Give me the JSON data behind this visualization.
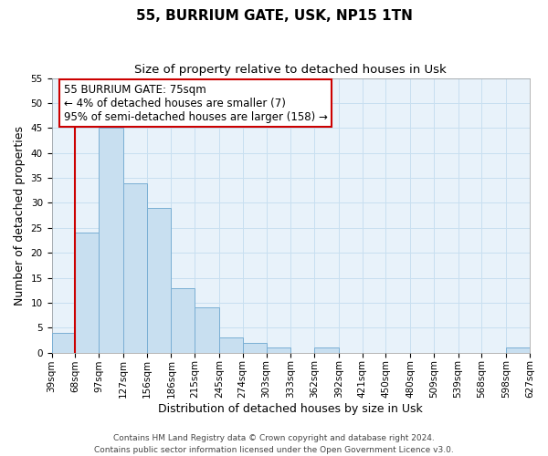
{
  "title": "55, BURRIUM GATE, USK, NP15 1TN",
  "subtitle": "Size of property relative to detached houses in Usk",
  "xlabel": "Distribution of detached houses by size in Usk",
  "ylabel": "Number of detached properties",
  "bins": [
    39,
    68,
    97,
    127,
    156,
    186,
    215,
    245,
    274,
    303,
    333,
    362,
    392,
    421,
    450,
    480,
    509,
    539,
    568,
    598,
    627
  ],
  "counts": [
    4,
    24,
    45,
    34,
    29,
    13,
    9,
    3,
    2,
    1,
    0,
    1,
    0,
    0,
    0,
    0,
    0,
    0,
    0,
    1
  ],
  "bin_labels": [
    "39sqm",
    "68sqm",
    "97sqm",
    "127sqm",
    "156sqm",
    "186sqm",
    "215sqm",
    "245sqm",
    "274sqm",
    "303sqm",
    "333sqm",
    "362sqm",
    "392sqm",
    "421sqm",
    "450sqm",
    "480sqm",
    "509sqm",
    "539sqm",
    "568sqm",
    "598sqm",
    "627sqm"
  ],
  "bar_color": "#c8dff0",
  "bar_edge_color": "#7aafd4",
  "red_line_x": 68,
  "annotation_line1": "55 BURRIUM GATE: 75sqm",
  "annotation_line2": "← 4% of detached houses are smaller (7)",
  "annotation_line3": "95% of semi-detached houses are larger (158) →",
  "annotation_box_color": "#ffffff",
  "annotation_box_edge_color": "#cc0000",
  "ylim": [
    0,
    55
  ],
  "yticks": [
    0,
    5,
    10,
    15,
    20,
    25,
    30,
    35,
    40,
    45,
    50,
    55
  ],
  "footer_line1": "Contains HM Land Registry data © Crown copyright and database right 2024.",
  "footer_line2": "Contains public sector information licensed under the Open Government Licence v3.0.",
  "title_fontsize": 11,
  "subtitle_fontsize": 9.5,
  "xlabel_fontsize": 9,
  "ylabel_fontsize": 9,
  "tick_fontsize": 7.5,
  "annotation_fontsize": 8.5,
  "footer_fontsize": 6.5,
  "grid_color": "#c8dff0",
  "bg_color": "#e8f2fa"
}
